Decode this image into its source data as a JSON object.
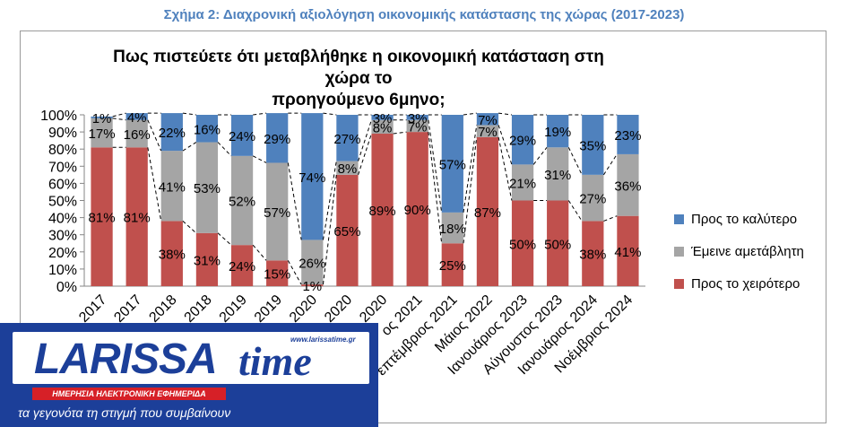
{
  "caption": "Σχήμα 2: Διαχρονική αξιολόγηση οικονομικής κατάστασης της χώρας (2017-2023)",
  "logo": {
    "word": "LARISSA",
    "word2": "time",
    "url": "www.larissatime.gr",
    "band": "ΗΜΕΡΗΣΙΑ ΗΛΕΚΤΡΟΝΙΚΗ ΕΦΗΜΕΡΙΔΑ",
    "tagline": "τα γεγονότα τη στιγμή που συμβαίνουν"
  },
  "chart_data": {
    "type": "bar",
    "stacked": true,
    "title": "Πως πιστεύετε ότι μεταβλήθηκε η οικονομική κατάσταση στη χώρα το προηγούμενο 6μηνο;",
    "title_lines": [
      "Πως πιστεύετε ότι μεταβλήθηκε η οικονομική κατάσταση στη χώρα το",
      "προηγούμενο 6μηνο;"
    ],
    "categories": [
      "2017",
      "2017",
      "2018",
      "2018",
      "2019",
      "2019",
      "2020",
      "2020",
      "2020",
      "ος 2021",
      "επτέμβριος 2021",
      "Μάιος 2022",
      "Ιανουάριος 2023",
      "Αύγουστος 2023",
      "Ιανουάριος 2024",
      "Νοέμβριος 2024"
    ],
    "series": [
      {
        "name": "Προς το χειρότερο",
        "color": "#c0504d",
        "values": [
          81,
          81,
          38,
          31,
          24,
          15,
          1,
          65,
          89,
          90,
          25,
          87,
          50,
          50,
          38,
          41
        ]
      },
      {
        "name": "Έμεινε αμετάβλητη",
        "color": "#a5a5a5",
        "values": [
          17,
          16,
          41,
          53,
          52,
          57,
          26,
          8,
          8,
          7,
          18,
          7,
          21,
          31,
          27,
          36
        ]
      },
      {
        "name": "Προς το καλύτερο",
        "color": "#4f81bd",
        "values": [
          1,
          4,
          22,
          16,
          24,
          29,
          74,
          27,
          3,
          3,
          57,
          7,
          29,
          19,
          35,
          23
        ]
      }
    ],
    "legend_order": [
      "Προς το καλύτερο",
      "Έμεινε αμετάβλητη",
      "Προς το χειρότερο"
    ],
    "y_ticks": [
      "0%",
      "10%",
      "20%",
      "30%",
      "40%",
      "50%",
      "60%",
      "70%",
      "80%",
      "90%",
      "100%"
    ],
    "ylim": [
      0,
      100
    ],
    "value_suffix": "%",
    "legend_position": "right",
    "grid": false
  }
}
